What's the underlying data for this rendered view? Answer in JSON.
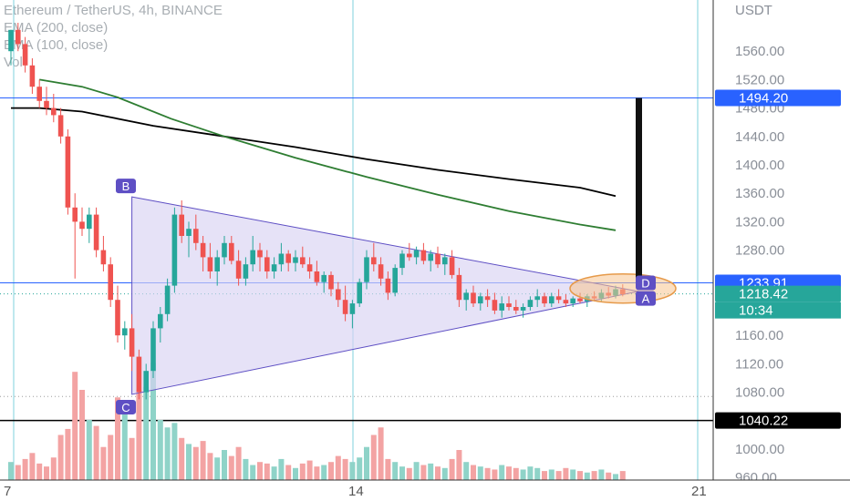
{
  "legend": {
    "title": "Ethereum / TetherUS, 4h, BINANCE",
    "ema200": "EMA (200, close)",
    "ema100": "EMA (100, close)",
    "vol": "Vol"
  },
  "colors": {
    "up": "#26a69a",
    "down": "#ef5350",
    "up_volume": "#8fd3c8",
    "down_volume": "#f3a3a3",
    "ema200": "#000000",
    "ema100": "#2e7d32",
    "triangle_fill": "#d9d2f2",
    "triangle_stroke": "#5e4fc4",
    "label_bg": "#5e4fc4",
    "price_line": "#2962ff",
    "target_bar": "#111111",
    "highlight": "#f7c48f",
    "vertical_line": "#7fd1de",
    "current_price_bg": "#26a69a"
  },
  "chart_data": {
    "type": "candlestick",
    "title": "Ethereum / TetherUS, 4h, BINANCE",
    "currency": "USDT",
    "ylim": [
      930,
      1590
    ],
    "y_ticks": [
      "1560.00",
      "1520.00",
      "1480.00",
      "1440.00",
      "1400.00",
      "1360.00",
      "1320.00",
      "1280.00",
      "1160.00",
      "1120.00",
      "1080.00",
      "1000.00",
      "960.00"
    ],
    "x_ticks": [
      "7",
      "14",
      "21"
    ],
    "price_tags": [
      {
        "value": "1494.20",
        "kind": "blue"
      },
      {
        "value": "1233.91",
        "kind": "blue"
      },
      {
        "value": "1218.42",
        "kind": "current"
      },
      {
        "value": "1040.22",
        "kind": "black"
      }
    ],
    "countdown": "10:34",
    "pattern_labels": [
      "A",
      "B",
      "C",
      "D"
    ],
    "horizontal_levels": [
      1494.2,
      1233.91,
      1040.22
    ],
    "candles": [
      [
        1560,
        1590,
        1540,
        1590
      ],
      [
        1590,
        1600,
        1560,
        1570
      ],
      [
        1570,
        1580,
        1530,
        1540
      ],
      [
        1540,
        1550,
        1500,
        1510
      ],
      [
        1510,
        1520,
        1480,
        1490
      ],
      [
        1490,
        1510,
        1470,
        1480
      ],
      [
        1480,
        1500,
        1460,
        1470
      ],
      [
        1470,
        1480,
        1430,
        1440
      ],
      [
        1440,
        1450,
        1330,
        1340
      ],
      [
        1340,
        1360,
        1240,
        1320
      ],
      [
        1320,
        1340,
        1300,
        1310
      ],
      [
        1310,
        1340,
        1290,
        1330
      ],
      [
        1330,
        1340,
        1270,
        1280
      ],
      [
        1280,
        1300,
        1250,
        1260
      ],
      [
        1260,
        1270,
        1200,
        1210
      ],
      [
        1210,
        1230,
        1150,
        1160
      ],
      [
        1160,
        1180,
        1140,
        1170
      ],
      [
        1170,
        1190,
        1110,
        1130
      ],
      [
        1130,
        1140,
        1070,
        1080
      ],
      [
        1080,
        1120,
        1070,
        1110
      ],
      [
        1110,
        1180,
        1100,
        1170
      ],
      [
        1170,
        1200,
        1150,
        1190
      ],
      [
        1190,
        1240,
        1180,
        1230
      ],
      [
        1230,
        1340,
        1220,
        1330
      ],
      [
        1330,
        1350,
        1290,
        1300
      ],
      [
        1300,
        1320,
        1270,
        1310
      ],
      [
        1310,
        1330,
        1280,
        1290
      ],
      [
        1290,
        1300,
        1250,
        1270
      ],
      [
        1270,
        1290,
        1240,
        1250
      ],
      [
        1250,
        1280,
        1230,
        1270
      ],
      [
        1270,
        1300,
        1260,
        1290
      ],
      [
        1290,
        1300,
        1260,
        1265
      ],
      [
        1265,
        1280,
        1230,
        1240
      ],
      [
        1240,
        1270,
        1230,
        1260
      ],
      [
        1260,
        1300,
        1250,
        1280
      ],
      [
        1280,
        1290,
        1250,
        1270
      ],
      [
        1270,
        1280,
        1240,
        1250
      ],
      [
        1250,
        1270,
        1240,
        1260
      ],
      [
        1260,
        1290,
        1250,
        1275
      ],
      [
        1275,
        1280,
        1250,
        1262
      ],
      [
        1262,
        1280,
        1250,
        1270
      ],
      [
        1270,
        1285,
        1255,
        1260
      ],
      [
        1260,
        1270,
        1240,
        1250
      ],
      [
        1250,
        1265,
        1230,
        1235
      ],
      [
        1235,
        1250,
        1220,
        1245
      ],
      [
        1245,
        1250,
        1215,
        1225
      ],
      [
        1225,
        1235,
        1200,
        1210
      ],
      [
        1210,
        1230,
        1180,
        1190
      ],
      [
        1190,
        1210,
        1170,
        1205
      ],
      [
        1205,
        1240,
        1200,
        1235
      ],
      [
        1235,
        1280,
        1225,
        1270
      ],
      [
        1270,
        1290,
        1250,
        1260
      ],
      [
        1260,
        1270,
        1230,
        1240
      ],
      [
        1240,
        1250,
        1210,
        1220
      ],
      [
        1220,
        1260,
        1215,
        1255
      ],
      [
        1255,
        1280,
        1245,
        1275
      ],
      [
        1275,
        1290,
        1265,
        1270
      ],
      [
        1270,
        1285,
        1260,
        1280
      ],
      [
        1280,
        1290,
        1260,
        1265
      ],
      [
        1265,
        1280,
        1250,
        1275
      ],
      [
        1275,
        1285,
        1255,
        1260
      ],
      [
        1260,
        1275,
        1245,
        1270
      ],
      [
        1270,
        1280,
        1240,
        1245
      ],
      [
        1245,
        1255,
        1200,
        1210
      ],
      [
        1210,
        1225,
        1195,
        1220
      ],
      [
        1220,
        1230,
        1200,
        1205
      ],
      [
        1205,
        1220,
        1195,
        1215
      ],
      [
        1215,
        1225,
        1200,
        1210
      ],
      [
        1210,
        1220,
        1190,
        1195
      ],
      [
        1195,
        1215,
        1185,
        1205
      ],
      [
        1205,
        1215,
        1195,
        1200
      ],
      [
        1200,
        1210,
        1190,
        1195
      ],
      [
        1195,
        1205,
        1185,
        1200
      ],
      [
        1200,
        1215,
        1195,
        1210
      ],
      [
        1210,
        1225,
        1200,
        1215
      ],
      [
        1215,
        1220,
        1200,
        1205
      ],
      [
        1205,
        1220,
        1200,
        1215
      ],
      [
        1215,
        1225,
        1205,
        1210
      ],
      [
        1210,
        1218,
        1200,
        1205
      ],
      [
        1205,
        1215,
        1200,
        1212
      ],
      [
        1212,
        1220,
        1205,
        1208
      ],
      [
        1208,
        1218,
        1200,
        1215
      ],
      [
        1215,
        1222,
        1208,
        1212
      ],
      [
        1212,
        1225,
        1208,
        1220
      ],
      [
        1220,
        1228,
        1212,
        1216
      ],
      [
        1216,
        1230,
        1212,
        1225
      ],
      [
        1225,
        1232,
        1215,
        1218
      ]
    ],
    "volumes": [
      12,
      10,
      14,
      18,
      11,
      9,
      15,
      30,
      34,
      72,
      60,
      40,
      36,
      22,
      30,
      55,
      44,
      28,
      60,
      62,
      78,
      40,
      35,
      38,
      28,
      24,
      22,
      26,
      18,
      15,
      20,
      16,
      22,
      14,
      10,
      12,
      11,
      9,
      14,
      10,
      8,
      11,
      13,
      9,
      10,
      12,
      16,
      14,
      12,
      15,
      22,
      30,
      35,
      14,
      12,
      9,
      8,
      12,
      10,
      11,
      9,
      8,
      14,
      20,
      12,
      10,
      9,
      8,
      7,
      10,
      9,
      8,
      7,
      9,
      8,
      6,
      7,
      6,
      8,
      7,
      6,
      5,
      6,
      7,
      5,
      4,
      6
    ],
    "ema200": [
      [
        0,
        1480
      ],
      [
        8,
        1480
      ],
      [
        20,
        1475
      ],
      [
        40,
        1455
      ],
      [
        60,
        1440
      ],
      [
        80,
        1425
      ],
      [
        100,
        1408
      ],
      [
        120,
        1393
      ],
      [
        140,
        1380
      ],
      [
        160,
        1368
      ],
      [
        170,
        1356
      ]
    ],
    "ema100": [
      [
        8,
        1520
      ],
      [
        20,
        1510
      ],
      [
        30,
        1495
      ],
      [
        45,
        1465
      ],
      [
        60,
        1440
      ],
      [
        80,
        1410
      ],
      [
        100,
        1383
      ],
      [
        120,
        1358
      ],
      [
        140,
        1335
      ],
      [
        160,
        1316
      ],
      [
        170,
        1308
      ]
    ],
    "triangle": {
      "B": 1355,
      "C": 1077,
      "apex": 1222
    },
    "target_bar": {
      "from": 1494.2,
      "to": 1233.91
    }
  }
}
